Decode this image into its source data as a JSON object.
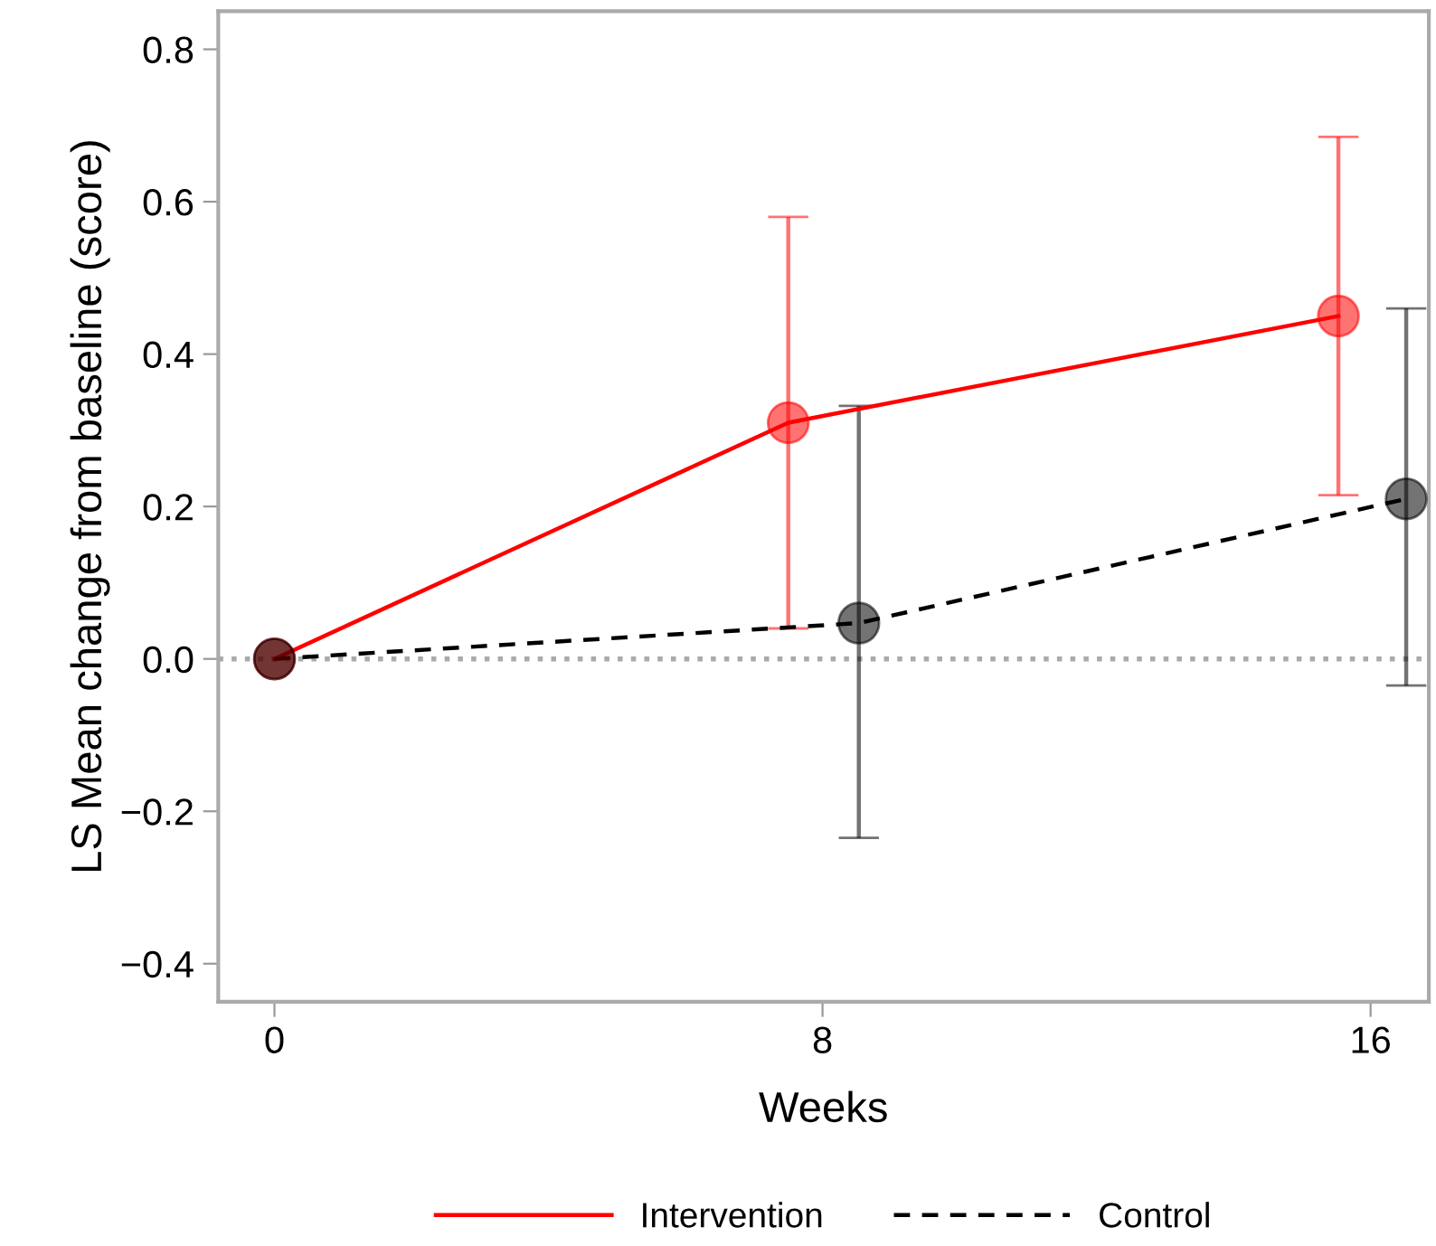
{
  "chart_data": {
    "type": "line",
    "xlabel": "Weeks",
    "ylabel": "LS Mean change from baseline (score)",
    "xlim": [
      -0.82,
      16.85
    ],
    "xticks": [
      0,
      8,
      16
    ],
    "ylim": [
      -0.45,
      0.85
    ],
    "yticks": [
      {
        "value": -0.4,
        "label": "−0.4"
      },
      {
        "value": -0.2,
        "label": "−0.2"
      },
      {
        "value": 0,
        "label": "0.0"
      },
      {
        "value": 0.2,
        "label": "0.2"
      },
      {
        "value": 0.4,
        "label": "0.4"
      },
      {
        "value": 0.6,
        "label": "0.6"
      },
      {
        "value": 0.8,
        "label": "0.8"
      }
    ],
    "grid": false,
    "legend": "bottom",
    "marker": "circle",
    "ref_lines": [
      {
        "axis": "y",
        "value": 0,
        "color": "#aaaaaa",
        "line_style": "dotted"
      }
    ],
    "series": [
      {
        "name": "Intervention",
        "color": "#ff0000",
        "line_style": "solid",
        "x": [
          0,
          7.5,
          15.53
        ],
        "values": [
          0,
          0.31,
          0.45
        ],
        "errors": [
          null,
          [
            0.04,
            0.58
          ],
          [
            0.215,
            0.685
          ]
        ]
      },
      {
        "name": "Control",
        "color": "#000000",
        "line_style": "dashed",
        "x": [
          0,
          8.53,
          16.52
        ],
        "values": [
          0,
          0.047,
          0.21
        ],
        "errors": [
          null,
          [
            -0.235,
            0.332
          ],
          [
            -0.035,
            0.46
          ]
        ]
      }
    ]
  }
}
